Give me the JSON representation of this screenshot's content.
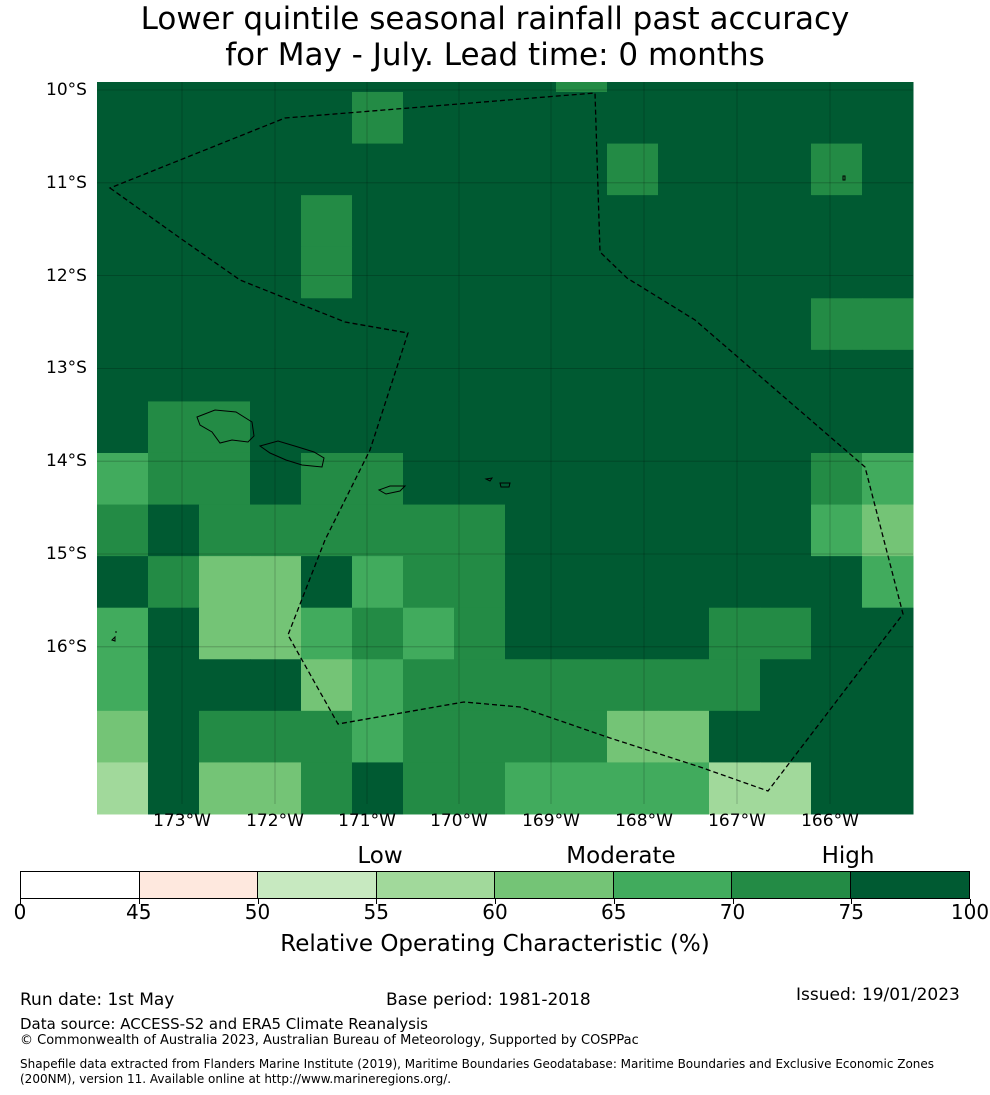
{
  "title": {
    "line1": "Lower quintile seasonal rainfall past accuracy",
    "line2": "for May - July. Lead time: 0 months"
  },
  "map": {
    "lat_labels": [
      "10°S",
      "11°S",
      "12°S",
      "13°S",
      "14°S",
      "15°S",
      "16°S"
    ],
    "lon_labels": [
      "173°W",
      "172°W",
      "171°W",
      "170°W",
      "169°W",
      "168°W",
      "167°W",
      "166°W"
    ],
    "grid_levels_percent": [
      [
        75,
        75,
        75,
        75,
        75,
        75,
        75,
        75,
        75,
        70,
        75,
        75,
        75,
        75,
        75,
        75
      ],
      [
        75,
        75,
        75,
        75,
        75,
        70,
        75,
        75,
        75,
        75,
        75,
        75,
        75,
        75,
        75,
        75
      ],
      [
        75,
        75,
        75,
        75,
        75,
        75,
        75,
        75,
        75,
        75,
        70,
        75,
        75,
        75,
        70,
        75
      ],
      [
        75,
        75,
        75,
        75,
        70,
        75,
        75,
        75,
        75,
        75,
        75,
        75,
        75,
        75,
        75,
        75
      ],
      [
        75,
        75,
        75,
        75,
        70,
        75,
        75,
        75,
        75,
        75,
        75,
        75,
        75,
        75,
        75,
        75
      ],
      [
        75,
        75,
        75,
        75,
        75,
        75,
        75,
        75,
        75,
        75,
        75,
        75,
        75,
        75,
        70,
        70
      ],
      [
        75,
        75,
        75,
        75,
        75,
        75,
        75,
        75,
        75,
        75,
        75,
        75,
        75,
        75,
        75,
        75
      ],
      [
        75,
        70,
        70,
        75,
        75,
        75,
        75,
        75,
        75,
        75,
        75,
        75,
        75,
        75,
        75,
        75
      ],
      [
        65,
        70,
        70,
        75,
        70,
        70,
        75,
        75,
        75,
        75,
        75,
        75,
        75,
        75,
        70,
        65
      ],
      [
        70,
        75,
        70,
        70,
        70,
        70,
        70,
        70,
        75,
        75,
        75,
        75,
        75,
        75,
        65,
        60
      ],
      [
        75,
        70,
        60,
        60,
        75,
        65,
        70,
        70,
        75,
        75,
        75,
        75,
        75,
        75,
        75,
        65
      ],
      [
        65,
        75,
        60,
        60,
        65,
        70,
        65,
        70,
        75,
        75,
        75,
        75,
        70,
        70,
        75,
        75
      ],
      [
        65,
        75,
        75,
        75,
        60,
        65,
        70,
        70,
        70,
        70,
        70,
        70,
        70,
        75,
        75,
        75
      ],
      [
        60,
        75,
        70,
        70,
        70,
        65,
        70,
        70,
        70,
        70,
        60,
        60,
        75,
        75,
        75,
        75
      ],
      [
        55,
        75,
        60,
        60,
        70,
        75,
        70,
        70,
        65,
        65,
        65,
        65,
        55,
        55,
        75,
        75
      ]
    ],
    "color_scale": {
      "55": "#a1d99b",
      "60": "#74c476",
      "65": "#41ab5d",
      "70": "#238b45",
      "75": "#005a32"
    }
  },
  "legend": {
    "categories": [
      "Low",
      "Moderate",
      "High"
    ],
    "boundaries": [
      0,
      45,
      50,
      55,
      60,
      65,
      70,
      75,
      100
    ],
    "tick_labels": [
      "0",
      "45",
      "50",
      "55",
      "60",
      "65",
      "70",
      "75",
      "100"
    ],
    "colors": [
      "#ffffff",
      "#fee8de",
      "#c7e9c0",
      "#a1d99b",
      "#74c476",
      "#41ab5d",
      "#238b45",
      "#005a32"
    ],
    "label": "Relative Operating Characteristic (%)"
  },
  "footer": {
    "run_date": "Run date: 1st May",
    "base_period": "Base period: 1981-2018",
    "issued": "Issued: 19/01/2023",
    "data_source": "Data source: ACCESS-S2 and ERA5 Climate Reanalysis",
    "copyright": "© Commonwealth of Australia 2023, Australian Bureau of Meteorology, Supported by COSPPac",
    "shapefile_1": "Shapefile data extracted from Flanders Marine Institute (2019), Maritime Boundaries Geodatabase: Maritime Boundaries and Exclusive Economic Zones",
    "shapefile_2": "(200NM), version 11. Available online at http://www.marineregions.org/."
  }
}
